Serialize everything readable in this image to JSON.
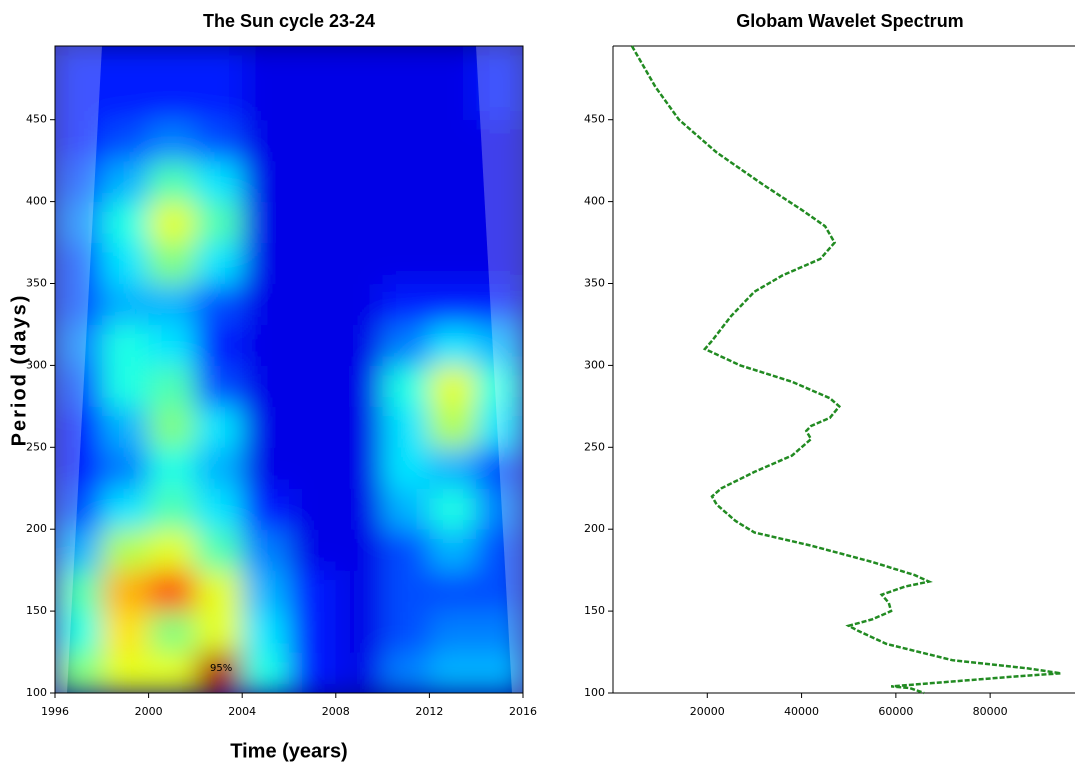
{
  "chart_data": [
    {
      "type": "heatmap",
      "title": "The Sun cycle 23-24",
      "x_label": "Time (years)",
      "y_label": "Period (days)",
      "colormap": "jet",
      "annotation": "95%",
      "xbins": [
        1996,
        1998,
        2000,
        2002,
        2004,
        2006,
        2008,
        2010,
        2012,
        2014,
        2016
      ],
      "ybins": [
        100,
        125,
        150,
        175,
        200,
        225,
        250,
        275,
        300,
        325,
        350,
        375,
        400,
        425,
        450,
        475,
        495
      ],
      "z": [
        [
          0.5,
          0.6,
          0.6,
          0.95,
          0.4,
          0.15,
          0.1,
          0.25,
          0.3,
          0.3
        ],
        [
          0.4,
          0.65,
          0.5,
          0.6,
          0.35,
          0.15,
          0.1,
          0.2,
          0.25,
          0.25
        ],
        [
          0.45,
          0.7,
          0.8,
          0.6,
          0.3,
          0.15,
          0.1,
          0.2,
          0.2,
          0.2
        ],
        [
          0.3,
          0.55,
          0.6,
          0.45,
          0.25,
          0.1,
          0.1,
          0.2,
          0.3,
          0.2
        ],
        [
          0.2,
          0.35,
          0.45,
          0.35,
          0.15,
          0.1,
          0.1,
          0.3,
          0.4,
          0.25
        ],
        [
          0.15,
          0.25,
          0.4,
          0.3,
          0.1,
          0.1,
          0.1,
          0.35,
          0.3,
          0.2
        ],
        [
          0.15,
          0.3,
          0.5,
          0.35,
          0.1,
          0.1,
          0.1,
          0.35,
          0.55,
          0.35
        ],
        [
          0.2,
          0.4,
          0.45,
          0.2,
          0.1,
          0.1,
          0.1,
          0.4,
          0.6,
          0.4
        ],
        [
          0.25,
          0.4,
          0.35,
          0.15,
          0.1,
          0.1,
          0.1,
          0.25,
          0.35,
          0.3
        ],
        [
          0.2,
          0.3,
          0.3,
          0.2,
          0.1,
          0.1,
          0.1,
          0.15,
          0.15,
          0.15
        ],
        [
          0.2,
          0.35,
          0.5,
          0.35,
          0.1,
          0.1,
          0.1,
          0.1,
          0.1,
          0.1
        ],
        [
          0.25,
          0.4,
          0.6,
          0.45,
          0.1,
          0.1,
          0.1,
          0.1,
          0.1,
          0.1
        ],
        [
          0.2,
          0.3,
          0.45,
          0.35,
          0.1,
          0.1,
          0.1,
          0.1,
          0.1,
          0.1
        ],
        [
          0.15,
          0.2,
          0.25,
          0.2,
          0.1,
          0.1,
          0.1,
          0.1,
          0.1,
          0.1
        ],
        [
          0.15,
          0.15,
          0.15,
          0.15,
          0.1,
          0.1,
          0.1,
          0.1,
          0.1,
          0.15
        ],
        [
          0.15,
          0.15,
          0.15,
          0.15,
          0.1,
          0.1,
          0.1,
          0.1,
          0.1,
          0.15
        ]
      ],
      "xlim": [
        1996,
        2016
      ],
      "xticks": [
        1996,
        2000,
        2004,
        2008,
        2012,
        2016
      ],
      "ylim": [
        100,
        495
      ],
      "yticks": [
        100,
        150,
        200,
        250,
        300,
        350,
        400,
        450
      ]
    },
    {
      "type": "line",
      "title": "Globam Wavelet Spectrum",
      "color": "#228b22",
      "y": [
        495,
        470,
        450,
        430,
        410,
        395,
        385,
        375,
        365,
        355,
        345,
        330,
        315,
        310,
        300,
        290,
        280,
        275,
        268,
        263,
        260,
        255,
        245,
        235,
        225,
        220,
        215,
        205,
        198,
        190,
        180,
        172,
        168,
        165,
        160,
        155,
        150,
        145,
        141,
        138,
        130,
        120,
        115,
        112,
        110,
        107,
        104,
        103,
        100
      ],
      "values": [
        4000,
        9000,
        14000,
        22000,
        32000,
        40000,
        45000,
        47000,
        44000,
        36000,
        30000,
        25000,
        21000,
        19500,
        27000,
        38000,
        46000,
        48000,
        46000,
        42000,
        41000,
        42000,
        38000,
        30000,
        23000,
        21000,
        22000,
        26000,
        30000,
        42000,
        55000,
        64000,
        67000,
        62000,
        57000,
        58500,
        59000,
        55000,
        50000,
        52000,
        58000,
        72000,
        88000,
        95000,
        85000,
        72000,
        59000,
        63000,
        66000
      ],
      "xlim": [
        0,
        98000
      ],
      "xticks": [
        20000,
        40000,
        60000,
        80000
      ],
      "ylim": [
        100,
        495
      ],
      "yticks": [
        100,
        150,
        200,
        250,
        300,
        350,
        400,
        450
      ]
    }
  ]
}
